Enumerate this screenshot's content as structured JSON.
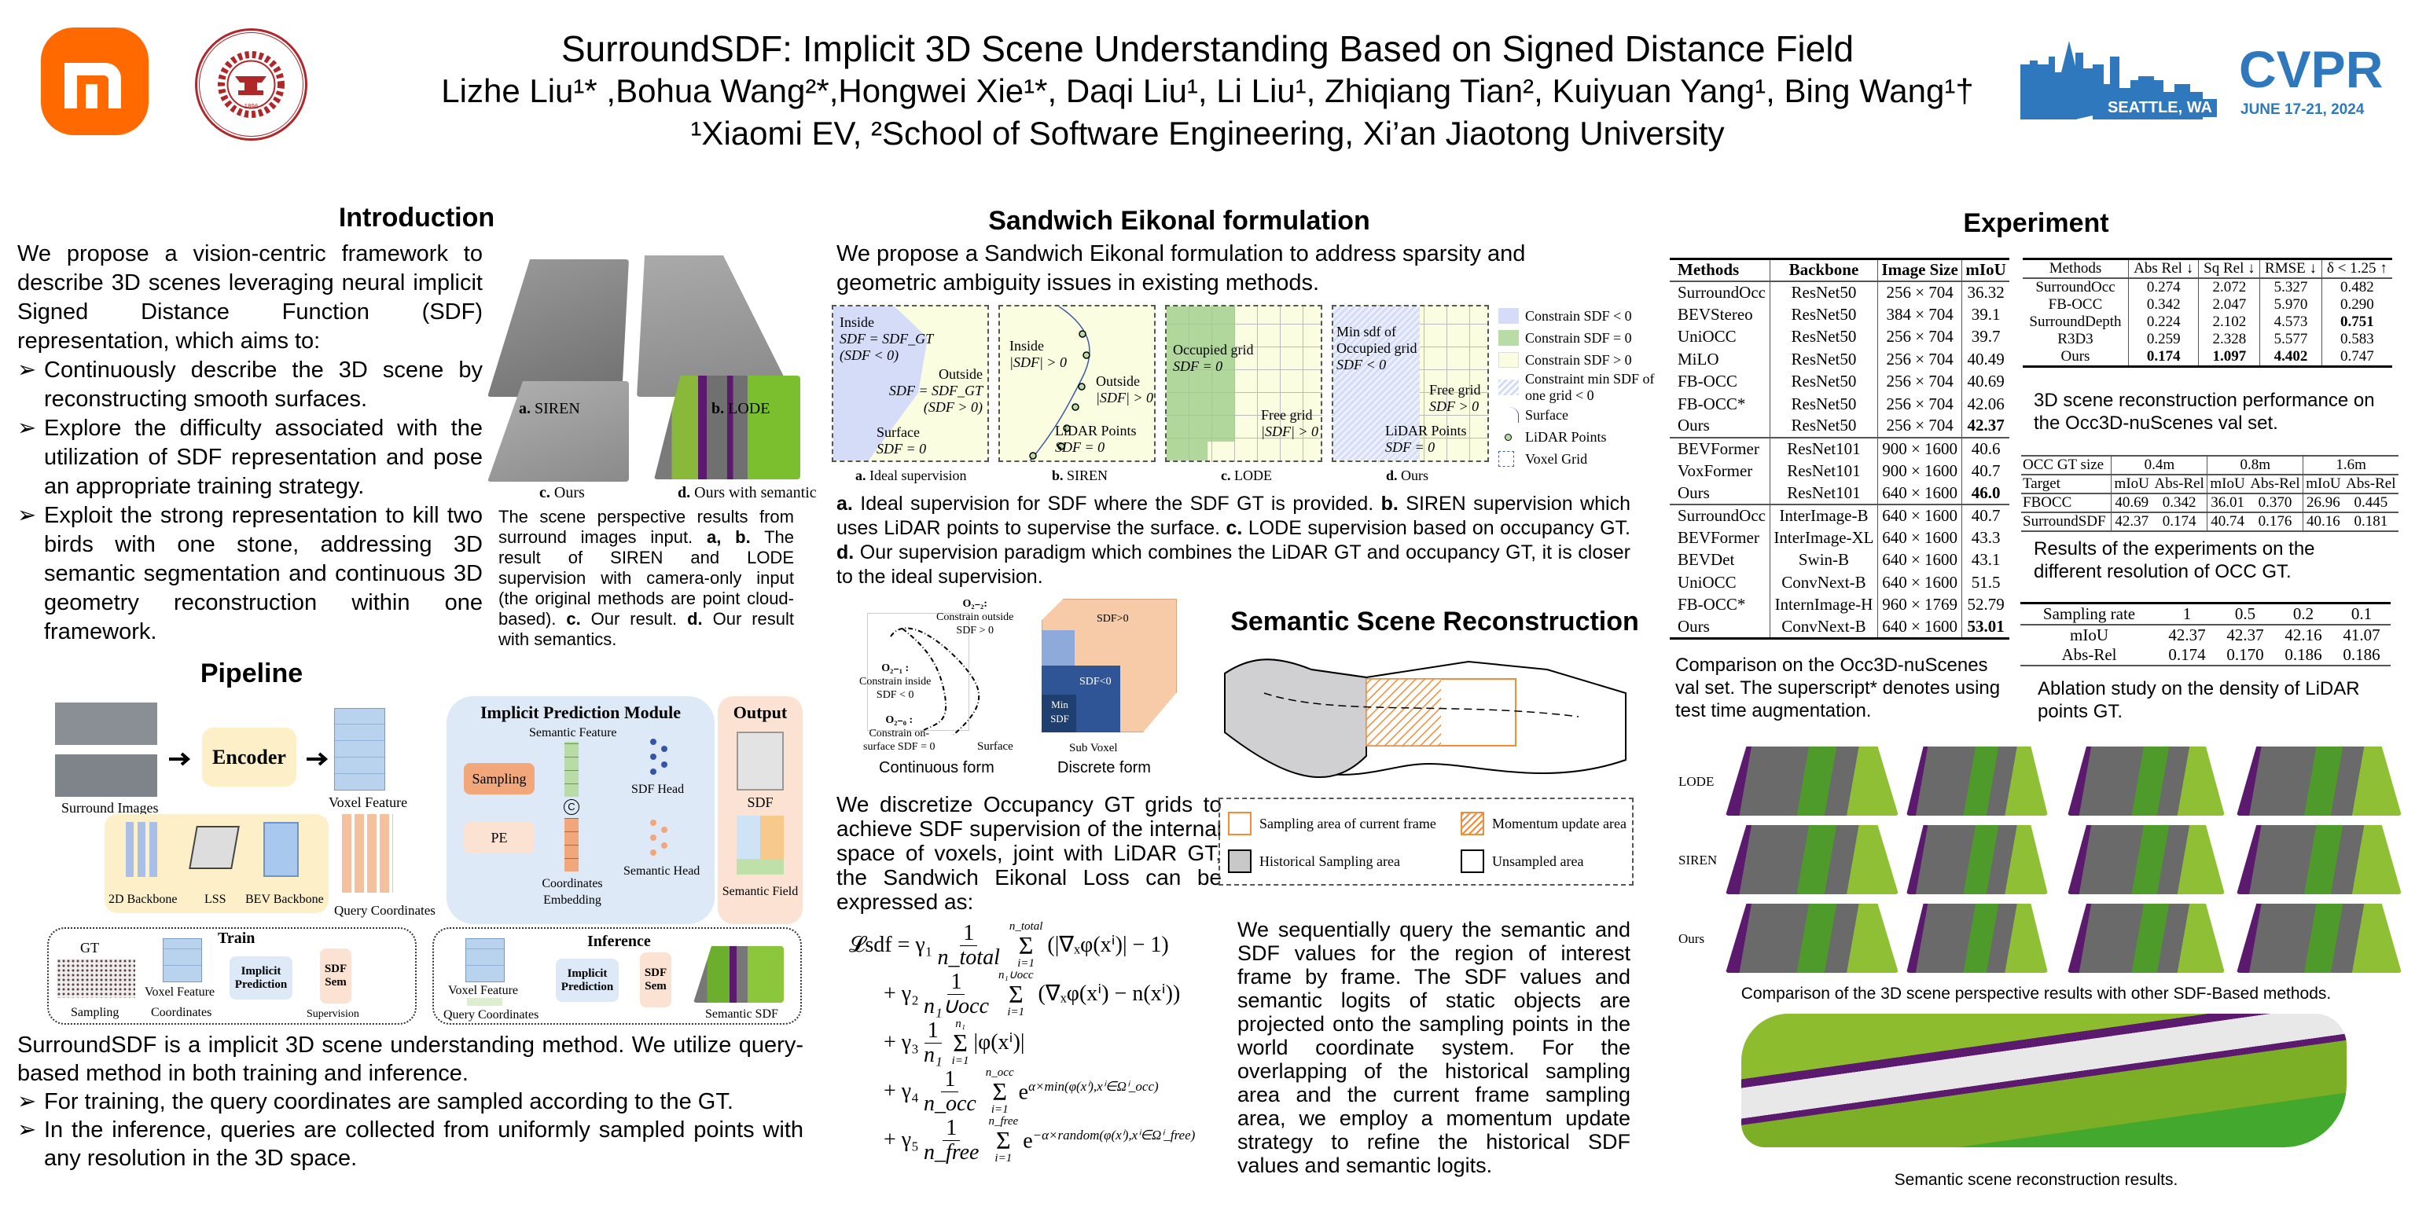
{
  "header": {
    "title": "SurroundSDF: Implicit 3D Scene Understanding Based on Signed Distance Field",
    "authors": "Lizhe Liu¹* ,Bohua Wang²*,Hongwei Xie¹*, Daqi Liu¹, Li Liu¹, Zhiqiang Tian², Kuiyuan Yang¹, Bing Wang¹†",
    "affiliations": "¹Xiaomi EV,  ²School of Software Engineering, Xi’an Jiaotong University",
    "logos": {
      "xiaomi": "mi",
      "xjtu_text": "XI'AN JIAOTONG UNIVERSITY",
      "xjtu_year": "1896",
      "cvpr": "CVPR",
      "cvpr_place": "SEATTLE, WA",
      "cvpr_date": "JUNE 17-21, 2024"
    },
    "colors": {
      "xiaomi_orange": "#ff6900",
      "xjtu_red": "#b0272a",
      "cvpr_blue": "#2f78bd"
    }
  },
  "intro": {
    "title": "Introduction",
    "para": "We propose a vision-centric framework to describe 3D scenes leveraging neural implicit Signed Distance Function (SDF) representation, which aims to:",
    "bullets": [
      "Continuously describe the 3D scene by reconstructing smooth surfaces.",
      "Explore the difficulty associated with the utilization of SDF representation and pose an appropriate training strategy.",
      "Exploit the strong representation to kill two birds with one stone, addressing 3D semantic segmentation and continuous 3D geometry reconstruction within one framework."
    ],
    "figure_labels": [
      {
        "k": "a.",
        "t": " SIREN"
      },
      {
        "k": "b.",
        "t": " LODE"
      },
      {
        "k": "c.",
        "t": " Ours"
      },
      {
        "k": "d.",
        "t": " Ours with semantic"
      }
    ],
    "caption": [
      {
        "t": "The scene perspective results from surround images input. "
      },
      {
        "b": "a, b."
      },
      {
        "t": " The result of SIREN and LODE supervision with camera-only input (the original methods are point cloud-based). "
      },
      {
        "b": "c."
      },
      {
        "t": " Our result. "
      },
      {
        "b": "d."
      },
      {
        "t": " Our result with semantics."
      }
    ]
  },
  "pipeline": {
    "title": "Pipeline",
    "labels": {
      "surround_images": "Surround Images",
      "encoder": "Encoder",
      "voxel_feature": "Voxel Feature",
      "query_coordinates": "Query Coordinates",
      "backbone_2d": "2D Backbone",
      "lss": "LSS",
      "bev_backbone": "BEV Backbone",
      "module": "Implicit Prediction Module",
      "semantic_feature": "Semantic Feature",
      "sampling": "Sampling",
      "pe": "PE",
      "concat": "C",
      "coord_embedding": "Coordinates Embedding",
      "sdf_head": "SDF Head",
      "semantic_head": "Semantic Head",
      "output": "Output",
      "sdf": "SDF",
      "semantic_field": "Semantic Field",
      "train": "Train",
      "gt": "GT",
      "train_voxel": "Voxel Feature",
      "train_sampling": "Sampling",
      "train_coords": "Coordinates",
      "implicit_prediction": "Implicit Prediction",
      "sdf_short": "SDF",
      "sem": "Sem",
      "supervision": "Supervision",
      "inference": "Inference",
      "inf_voxel": "Voxel Feature",
      "inf_query": "Query Coordinates",
      "semantic_sdf": "Semantic SDF"
    },
    "para": "SurroundSDF is a implicit 3D scene understanding method. We utilize query-based method in both training and inference.",
    "bullets": [
      "For training, the query coordinates are sampled according to the GT.",
      "In the inference, queries are collected from uniformly sampled points with any resolution in the 3D space."
    ]
  },
  "sandwich": {
    "title": "Sandwich Eikonal formulation",
    "para": "We propose a Sandwich Eikonal formulation to address sparsity and geometric ambiguity issues in existing methods.",
    "panels": {
      "a": {
        "inside": "Inside",
        "inside_eq": "SDF = SDF_GT",
        "inside_cond": "(SDF < 0)",
        "outside": "Outside",
        "outside_eq": "SDF = SDF_GT",
        "outside_cond": "(SDF > 0)",
        "surface": "Surface",
        "surface_eq": "SDF = 0",
        "label_k": "a.",
        "label": " Ideal supervision"
      },
      "b": {
        "inside": "Inside",
        "inside_eq": "|SDF| > 0",
        "outside": "Outside",
        "outside_eq": "|SDF| > 0",
        "lidar": "LiDAR Points",
        "lidar_eq": "SDF = 0",
        "label_k": "b.",
        "label": " SIREN"
      },
      "c": {
        "occ": "Occupied grid",
        "occ_eq": "SDF = 0",
        "free": "Free grid",
        "free_eq": "|SDF| > 0",
        "label_k": "c.",
        "label": " LODE"
      },
      "d": {
        "min": "Min sdf of",
        "occ": "Occupied grid",
        "occ_eq": "SDF < 0",
        "free": "Free grid",
        "free_eq": "SDF > 0",
        "lidar": "LiDAR Points",
        "lidar_eq": "SDF = 0",
        "label_k": "d.",
        "label": " Ours"
      }
    },
    "legend": [
      "Constrain SDF < 0",
      "Constrain SDF = 0",
      "Constrain SDF > 0",
      "Constraint min SDF of one grid < 0",
      "Surface",
      "LiDAR Points",
      "Voxel Grid"
    ],
    "caption": [
      {
        "b": "a."
      },
      {
        "t": " Ideal supervision for SDF where the SDF GT is provided. "
      },
      {
        "b": "b."
      },
      {
        "t": " SIREN supervision which uses LiDAR points to supervise the surface. "
      },
      {
        "b": "c."
      },
      {
        "t": " LODE supervision based on occupancy GT. "
      },
      {
        "b": "d."
      },
      {
        "t": " Our supervision paradigm which combines the LiDAR GT and occupancy GT, it is closer to the ideal supervision."
      }
    ],
    "continuous": {
      "o22": "O₂₋₂:",
      "o22_t": "Constrain outside",
      "o22_eq": "SDF > 0",
      "o21": "O₂₋₁ :",
      "o21_t": "Constrain inside",
      "o21_eq": "SDF < 0",
      "o20": "O₂₋₀ :",
      "o20_t": "Constrain on-",
      "o20_t2": "surface  SDF = 0",
      "surface": "Surface",
      "label": "Continuous  form"
    },
    "discrete": {
      "pos": "SDF>0",
      "neg": "SDF<0",
      "min": "Min SDF",
      "sub": "Sub Voxel",
      "label": "Discrete form"
    },
    "para2": "We discretize Occupancy GT grids to achieve SDF supervision of the internal space of voxels, joint with LiDAR GT,  the Sandwich Eikonal Loss can be expressed as:",
    "equation": [
      {
        "lead": "𝓛sdf = γ₁",
        "den": "n_total",
        "up": "n_total",
        "low": "i=1",
        "body": "(|∇ₓφ(xⁱ)| − 1)"
      },
      {
        "lead": "+ γ₂",
        "den": "n₁∪occ",
        "up": "n₁∪occ",
        "low": "i=1",
        "body": "(∇ₓφ(xⁱ) − n(xⁱ))"
      },
      {
        "lead": "+ γ₃",
        "den": "n₁",
        "up": "n₁",
        "low": "i=1",
        "body": "|φ(xⁱ)|"
      },
      {
        "lead": "+ γ₄",
        "den": "n_occ",
        "up": "n_occ",
        "low": "i=1",
        "body": "e^{α×min(φ(xⁱ),xⁱ∈Ωⁱ_occ)}"
      },
      {
        "lead": "+ γ₅",
        "den": "n_free",
        "up": "n_free",
        "low": "i=1",
        "body": "e^{−α×random(φ(xⁱ),xⁱ∈Ωⁱ_free)}"
      }
    ]
  },
  "semantic": {
    "title": "Semantic Scene Reconstruction",
    "legend": [
      "Sampling area of current frame",
      "Momentum update area",
      "Historical Sampling area",
      "Unsampled area"
    ],
    "para": "We sequentially query the semantic and SDF values for the region of interest frame by frame. The SDF values and semantic logits of static objects are projected onto the sampling points in the world coordinate system. For the overlapping of the historical sampling area and the current frame sampling area, we employ a momentum update strategy to refine the historical SDF values and semantic logits."
  },
  "experiment": {
    "title": "Experiment",
    "table1": {
      "headers": [
        "Methods",
        "Backbone",
        "Image Size",
        "mIoU"
      ],
      "groups": [
        [
          [
            "SurroundOcc",
            "ResNet50",
            "256 × 704",
            "36.32"
          ],
          [
            "BEVStereo",
            "ResNet50",
            "384 × 704",
            "39.1"
          ],
          [
            "UniOCC",
            "ResNet50",
            "256 × 704",
            "39.7"
          ],
          [
            "MiLO",
            "ResNet50",
            "256 × 704",
            "40.49"
          ],
          [
            "FB-OCC",
            "ResNet50",
            "256 × 704",
            "40.69"
          ],
          [
            "FB-OCC*",
            "ResNet50",
            "256 × 704",
            "42.06"
          ],
          [
            "Ours",
            "ResNet50",
            "256 × 704",
            "42.37"
          ]
        ],
        [
          [
            "BEVFormer",
            "ResNet101",
            "900 × 1600",
            "40.6"
          ],
          [
            "VoxFormer",
            "ResNet101",
            "900 × 1600",
            "40.7"
          ],
          [
            "Ours",
            "ResNet101",
            "640 × 1600",
            "46.0"
          ]
        ],
        [
          [
            "SurroundOcc",
            "InterImage-B",
            "640 × 1600",
            "40.7"
          ],
          [
            "BEVFormer",
            "InterImage-XL",
            "640 × 1600",
            "43.3"
          ],
          [
            "BEVDet",
            "Swin-B",
            "640 × 1600",
            "43.1"
          ],
          [
            "UniOCC",
            "ConvNext-B",
            "640 × 1600",
            "51.5"
          ],
          [
            "FB-OCC*",
            "InternImage-H",
            "960 × 1769",
            "52.79"
          ],
          [
            "Ours",
            "ConvNext-B",
            "640 × 1600",
            "53.01"
          ]
        ]
      ],
      "bold": [
        "42.37",
        "46.0",
        "53.01"
      ],
      "caption": "Comparison on the Occ3D-nuScenes val set. The superscript* denotes using test time augmentation."
    },
    "table2": {
      "rows": [
        [
          "Methods",
          "Abs Rel ↓",
          "Sq Rel ↓",
          "RMSE ↓",
          "δ < 1.25 ↑"
        ],
        [
          "SurroundOcc",
          "0.274",
          "2.072",
          "5.327",
          "0.482"
        ],
        [
          "FB-OCC",
          "0.342",
          "2.047",
          "5.970",
          "0.290"
        ],
        [
          "SurroundDepth",
          "0.224",
          "2.102",
          "4.573",
          "0.751"
        ],
        [
          "R3D3",
          "0.259",
          "2.328",
          "5.577",
          "0.583"
        ],
        [
          "Ours",
          "0.174",
          "1.097",
          "4.402",
          "0.747"
        ]
      ],
      "bold": [
        [
          3,
          4
        ],
        [
          5,
          1
        ],
        [
          5,
          2
        ],
        [
          5,
          3
        ]
      ],
      "caption": "3D scene reconstruction performance on the Occ3D-nuScenes val set."
    },
    "table3": {
      "header": [
        "OCC GT size",
        "0.4m",
        "0.8m",
        "1.6m"
      ],
      "rows": [
        [
          "Target",
          "mIoU",
          "Abs-Rel",
          "mIoU",
          "Abs-Rel",
          "mIoU",
          "Abs-Rel"
        ],
        [
          "FBOCC",
          "40.69",
          "0.342",
          "36.01",
          "0.370",
          "26.96",
          "0.445"
        ],
        [
          "SurroundSDF",
          "42.37",
          "0.174",
          "40.74",
          "0.176",
          "40.16",
          "0.181"
        ]
      ],
      "caption": "Results of the experiments on the different resolution of OCC GT."
    },
    "table4": {
      "rows": [
        [
          "Sampling rate",
          "1",
          "0.5",
          "0.2",
          "0.1"
        ],
        [
          "mIoU",
          "42.37",
          "42.37",
          "42.16",
          "41.07"
        ],
        [
          "Abs-Rel",
          "0.174",
          "0.170",
          "0.186",
          "0.186"
        ]
      ],
      "caption": "Ablation study on the density of LiDAR points GT."
    },
    "comparison_rows": [
      "LODE",
      "SIREN",
      "Ours"
    ],
    "comparison_caption": "Comparison of the 3D scene perspective results with other SDF-Based methods.",
    "recon_caption": "Semantic scene reconstruction results."
  }
}
